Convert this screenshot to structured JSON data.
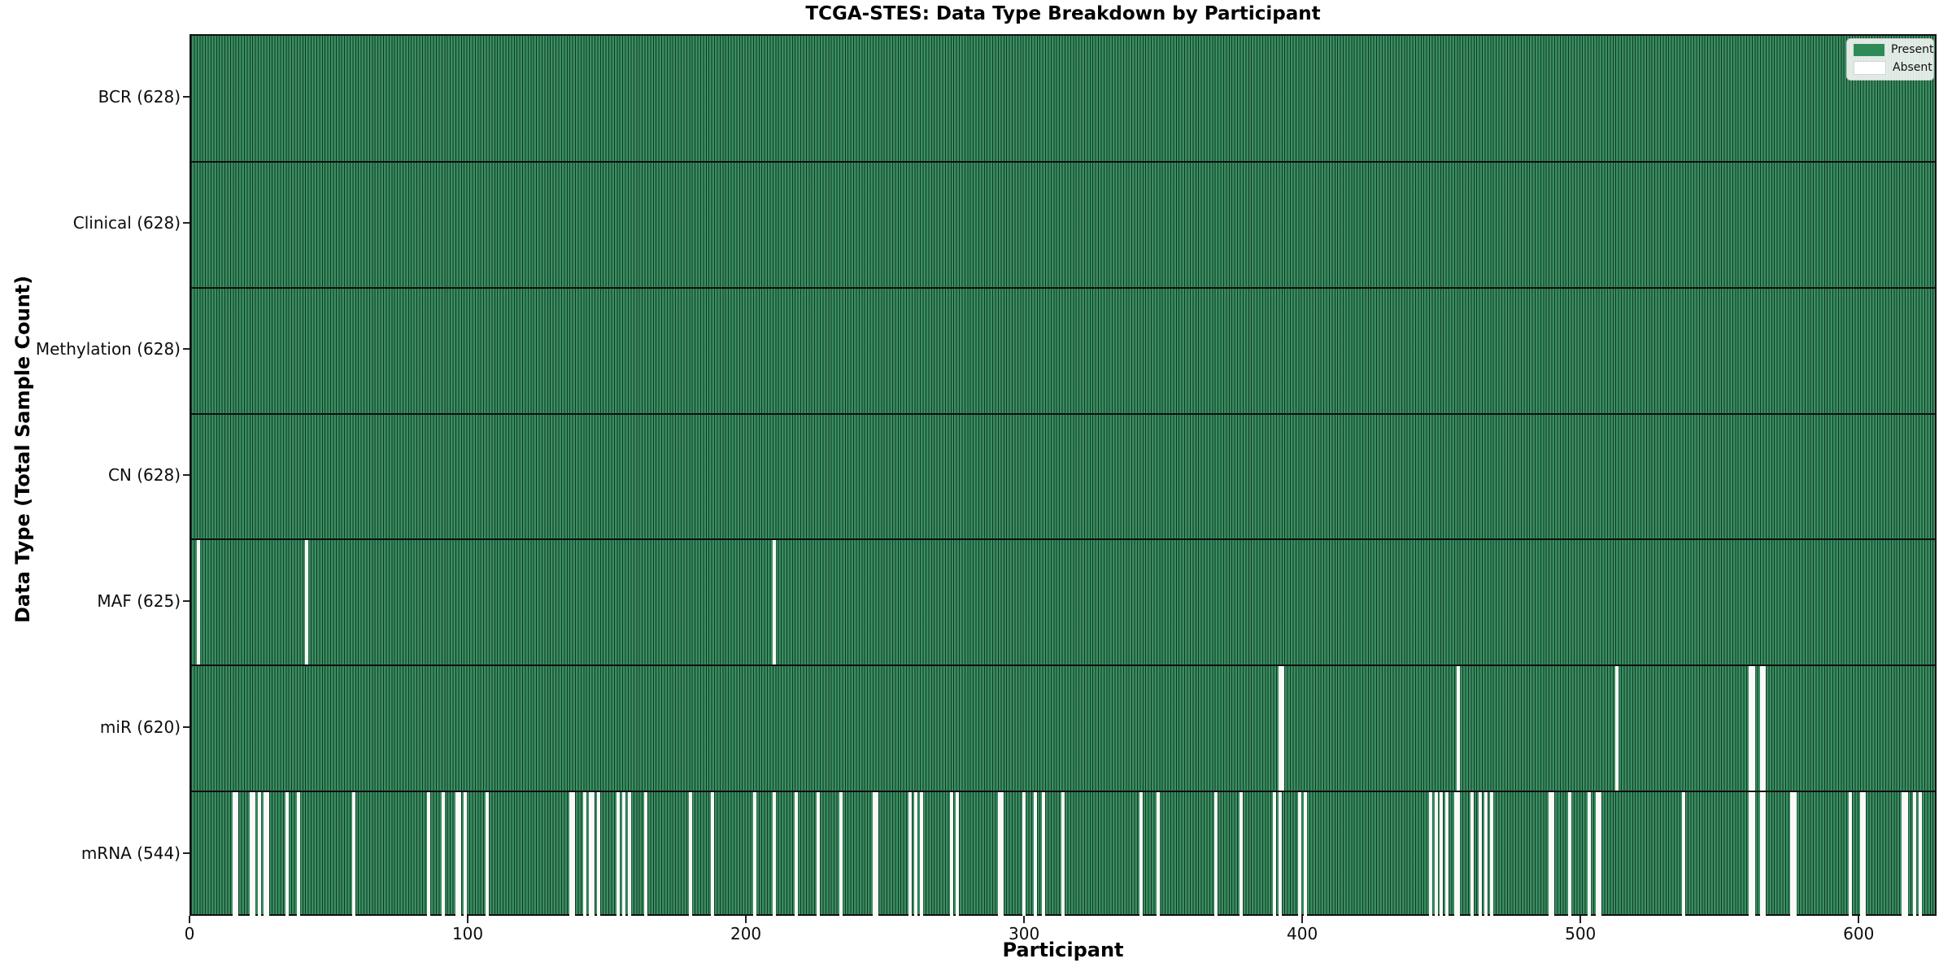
{
  "chart_data": {
    "type": "heatmap",
    "title": "TCGA-STES: Data Type Breakdown by Participant",
    "xlabel": "Participant",
    "ylabel": "Data Type (Total Sample Count)",
    "x_ticks": [
      0,
      100,
      200,
      300,
      400,
      500,
      600
    ],
    "n_participants": 628,
    "grid": false,
    "legend_position": "upper right",
    "colors": {
      "present": "#2e8b57",
      "present_fill_rendered": "#3b8e62",
      "bar_edge": "#0a2a1a",
      "absent": "#ffffff",
      "separator": "#101010"
    },
    "legend": {
      "entries": [
        {
          "label": "Present",
          "color": "#2e8b57"
        },
        {
          "label": "Absent",
          "color": "#ffffff"
        }
      ]
    },
    "rows": [
      {
        "label": "BCR (628)",
        "data_type": "BCR",
        "count": 628,
        "absent": []
      },
      {
        "label": "Clinical (628)",
        "data_type": "Clinical",
        "count": 628,
        "absent": []
      },
      {
        "label": "Methylation (628)",
        "data_type": "Methylation",
        "count": 628,
        "absent": []
      },
      {
        "label": "CN (628)",
        "data_type": "CN",
        "count": 628,
        "absent": []
      },
      {
        "label": "MAF (625)",
        "data_type": "MAF",
        "count": 625,
        "absent": [
          2,
          41,
          209
        ]
      },
      {
        "label": "miR (620)",
        "data_type": "miR",
        "count": 620,
        "absent": [
          391,
          392,
          455,
          512,
          560,
          561,
          564,
          565
        ]
      },
      {
        "label": "mRNA (544)",
        "data_type": "mRNA",
        "count": 544,
        "absent": [
          15,
          16,
          21,
          22,
          24,
          26,
          27,
          34,
          38,
          58,
          85,
          90,
          95,
          96,
          98,
          106,
          136,
          137,
          141,
          143,
          144,
          146,
          153,
          155,
          157,
          163,
          179,
          187,
          202,
          209,
          217,
          225,
          233,
          245,
          246,
          258,
          260,
          262,
          273,
          275,
          290,
          291,
          299,
          303,
          306,
          313,
          341,
          347,
          368,
          377,
          389,
          391,
          398,
          400,
          445,
          447,
          449,
          451,
          454,
          455,
          460,
          463,
          465,
          467,
          488,
          489,
          495,
          502,
          505,
          506,
          536,
          560,
          561,
          564,
          565,
          575,
          576,
          596,
          600,
          601,
          615,
          616,
          619,
          621
        ]
      }
    ]
  }
}
